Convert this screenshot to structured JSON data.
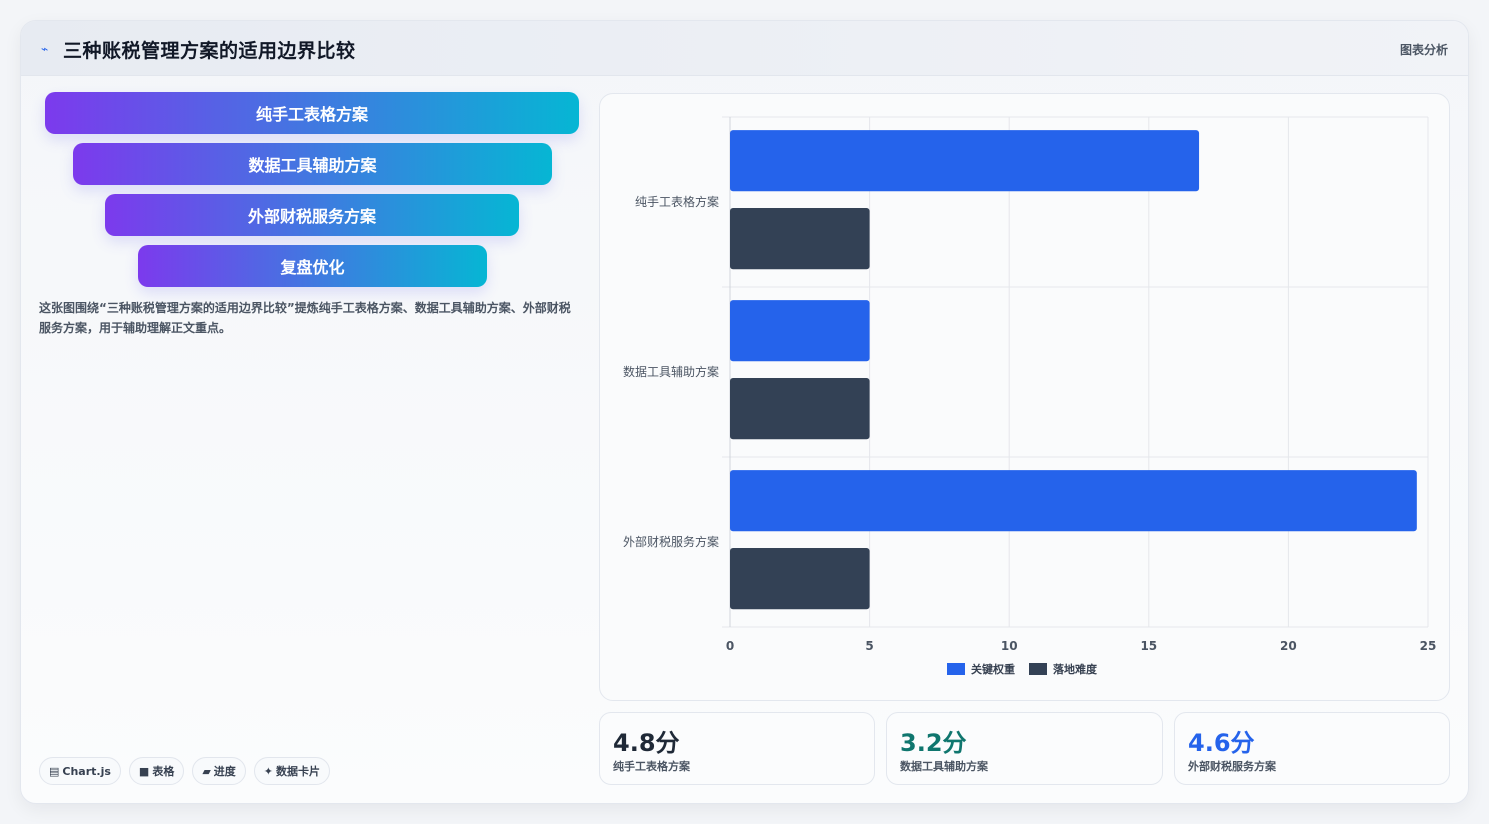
{
  "header": {
    "icon": "sparkle-icon",
    "title": "三种账税管理方案的适用边界比较",
    "tag": "图表分析"
  },
  "funnel": [
    "纯手工表格方案",
    "数据工具辅助方案",
    "外部财税服务方案",
    "复盘优化"
  ],
  "description": "这张图围绕“三种账税管理方案的适用边界比较”提炼纯手工表格方案、数据工具辅助方案、外部财税服务方案，用于辅助理解正文重点。",
  "chips": [
    {
      "icon": "chart-icon",
      "glyph": "▤",
      "label": "Chart.js"
    },
    {
      "icon": "table-icon",
      "glyph": "■",
      "label": "表格"
    },
    {
      "icon": "progress-icon",
      "glyph": "▰",
      "label": "进度"
    },
    {
      "icon": "sparkle-icon",
      "glyph": "✦",
      "label": "数据卡片"
    }
  ],
  "stats": [
    {
      "value": "4.8分",
      "label": "纯手工表格方案",
      "color": "#1f2937"
    },
    {
      "value": "3.2分",
      "label": "数据工具辅助方案",
      "color": "#0f766e"
    },
    {
      "value": "4.6分",
      "label": "外部财税服务方案",
      "color": "#2563eb"
    }
  ],
  "chart_data": {
    "type": "bar",
    "orientation": "horizontal",
    "categories": [
      "纯手工表格方案",
      "数据工具辅助方案",
      "外部财税服务方案"
    ],
    "series": [
      {
        "name": "关键权重",
        "values": [
          16.8,
          5,
          24.6
        ],
        "color": "#2563eb"
      },
      {
        "name": "落地难度",
        "values": [
          5,
          5,
          5
        ],
        "color": "#334155"
      }
    ],
    "xlim": [
      0,
      25
    ],
    "xticks": [
      0,
      5,
      10,
      15,
      20,
      25
    ],
    "grid": true,
    "legend": "bottom"
  }
}
